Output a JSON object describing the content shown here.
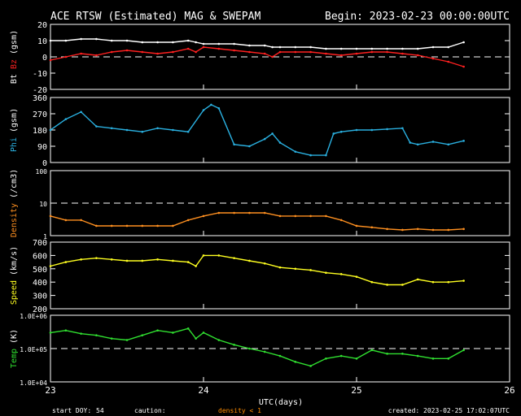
{
  "header": {
    "title": "ACE RTSW (Estimated) MAG & SWEPAM",
    "begin": "Begin: 2023-02-23 00:00:00UTC"
  },
  "colors": {
    "background": "#000000",
    "foreground": "#ffffff",
    "bt": "#ffffff",
    "bz": "#ff2020",
    "phi": "#2ab0e0",
    "density": "#ff9020",
    "speed": "#ffff20",
    "temp": "#30e030",
    "caution": "#ff8c00"
  },
  "footer": {
    "start_doy_label": "start DOY:",
    "start_doy_value": "54",
    "caution_label": "caution:",
    "caution_text": "density < 1",
    "created": "created: 2023-02-25 17:02:07UTC"
  },
  "chart_data": [
    {
      "type": "scatter",
      "ylabel_parts": [
        "Bt",
        "Bz",
        "(gsm)"
      ],
      "ylim": [
        -20,
        20
      ],
      "yticks": [
        "-20",
        "-10",
        "0",
        "10",
        "20"
      ],
      "ref_lines": [
        0
      ],
      "series": [
        {
          "name": "Bt",
          "x": [
            0,
            0.1,
            0.2,
            0.3,
            0.4,
            0.5,
            0.6,
            0.7,
            0.8,
            0.9,
            0.95,
            1.0,
            1.1,
            1.2,
            1.3,
            1.4,
            1.45,
            1.5,
            1.6,
            1.7,
            1.8,
            1.9,
            2.0,
            2.1,
            2.2,
            2.3,
            2.4,
            2.5,
            2.6,
            2.7
          ],
          "values": [
            10,
            10,
            11,
            11,
            10,
            10,
            9,
            9,
            9,
            10,
            9,
            8,
            8,
            8,
            7,
            7,
            6,
            6,
            6,
            6,
            5,
            5,
            5,
            5,
            5,
            5,
            5,
            6,
            6,
            9
          ]
        },
        {
          "name": "Bz",
          "x": [
            0,
            0.1,
            0.2,
            0.3,
            0.4,
            0.5,
            0.6,
            0.7,
            0.8,
            0.9,
            0.95,
            1.0,
            1.1,
            1.2,
            1.3,
            1.4,
            1.45,
            1.5,
            1.6,
            1.7,
            1.8,
            1.9,
            2.0,
            2.1,
            2.2,
            2.3,
            2.4,
            2.5,
            2.6,
            2.7
          ],
          "values": [
            -2,
            0,
            2,
            1,
            3,
            4,
            3,
            2,
            3,
            5,
            3,
            6,
            5,
            4,
            3,
            2,
            0,
            3,
            3,
            3,
            2,
            1,
            2,
            3,
            3,
            2,
            1,
            -1,
            -3,
            -6
          ]
        }
      ]
    },
    {
      "type": "scatter",
      "ylabel_parts": [
        "Phi",
        "(gsm)"
      ],
      "ylim": [
        0,
        360
      ],
      "yticks": [
        "0",
        "90",
        "180",
        "270",
        "360"
      ],
      "ref_lines": [],
      "series": [
        {
          "name": "Phi",
          "x": [
            0,
            0.1,
            0.2,
            0.3,
            0.4,
            0.5,
            0.6,
            0.7,
            0.8,
            0.9,
            1.0,
            1.05,
            1.1,
            1.2,
            1.3,
            1.4,
            1.45,
            1.5,
            1.6,
            1.7,
            1.8,
            1.85,
            1.9,
            2.0,
            2.1,
            2.2,
            2.3,
            2.35,
            2.4,
            2.5,
            2.6,
            2.7
          ],
          "values": [
            180,
            240,
            280,
            200,
            190,
            180,
            170,
            190,
            180,
            170,
            290,
            320,
            300,
            100,
            90,
            130,
            160,
            110,
            60,
            40,
            40,
            160,
            170,
            180,
            180,
            185,
            190,
            110,
            100,
            115,
            100,
            120
          ]
        }
      ]
    },
    {
      "type": "scatter",
      "ylabel_parts": [
        "Density",
        "(/cm3)"
      ],
      "yscale": "log",
      "ylim": [
        1,
        100
      ],
      "yticks": [
        "1",
        "10",
        "100"
      ],
      "ref_lines": [
        10
      ],
      "series": [
        {
          "name": "Density",
          "x": [
            0,
            0.1,
            0.2,
            0.3,
            0.4,
            0.5,
            0.6,
            0.7,
            0.8,
            0.9,
            1.0,
            1.1,
            1.2,
            1.3,
            1.4,
            1.5,
            1.6,
            1.7,
            1.8,
            1.9,
            2.0,
            2.1,
            2.2,
            2.3,
            2.4,
            2.5,
            2.6,
            2.7
          ],
          "values": [
            4,
            3,
            3,
            2,
            2,
            2,
            2,
            2,
            2,
            3,
            4,
            5,
            5,
            5,
            5,
            4,
            4,
            4,
            4,
            3,
            2,
            1.8,
            1.6,
            1.5,
            1.6,
            1.5,
            1.5,
            1.6
          ]
        }
      ]
    },
    {
      "type": "scatter",
      "ylabel_parts": [
        "Speed",
        "(km/s)"
      ],
      "ylim": [
        200,
        700
      ],
      "yticks": [
        "200",
        "300",
        "400",
        "500",
        "600",
        "700"
      ],
      "ref_lines": [],
      "series": [
        {
          "name": "Speed",
          "x": [
            0,
            0.1,
            0.2,
            0.3,
            0.4,
            0.5,
            0.6,
            0.7,
            0.8,
            0.9,
            0.95,
            1.0,
            1.1,
            1.2,
            1.3,
            1.4,
            1.5,
            1.6,
            1.7,
            1.8,
            1.9,
            2.0,
            2.1,
            2.2,
            2.3,
            2.4,
            2.5,
            2.6,
            2.7
          ],
          "values": [
            520,
            550,
            570,
            580,
            570,
            560,
            560,
            570,
            560,
            550,
            520,
            600,
            600,
            580,
            560,
            540,
            510,
            500,
            490,
            470,
            460,
            440,
            400,
            380,
            380,
            420,
            400,
            400,
            410
          ]
        }
      ]
    },
    {
      "type": "scatter",
      "ylabel_parts": [
        "Temp",
        "(K)"
      ],
      "yscale": "log",
      "ylim": [
        10000,
        1000000
      ],
      "yticks": [
        "1.0E+04",
        "1.0E+05",
        "1.0E+06"
      ],
      "ref_lines": [
        100000
      ],
      "series": [
        {
          "name": "Temp",
          "x": [
            0,
            0.1,
            0.2,
            0.3,
            0.4,
            0.5,
            0.6,
            0.7,
            0.8,
            0.9,
            0.95,
            1.0,
            1.1,
            1.2,
            1.3,
            1.4,
            1.5,
            1.6,
            1.7,
            1.8,
            1.9,
            2.0,
            2.1,
            2.2,
            2.3,
            2.4,
            2.5,
            2.6,
            2.7
          ],
          "values": [
            300000,
            350000,
            280000,
            250000,
            200000,
            180000,
            250000,
            350000,
            300000,
            400000,
            200000,
            300000,
            180000,
            130000,
            100000,
            80000,
            60000,
            40000,
            30000,
            50000,
            60000,
            50000,
            90000,
            70000,
            70000,
            60000,
            50000,
            50000,
            90000
          ]
        }
      ]
    }
  ],
  "xaxis": {
    "label": "UTC(days)",
    "ticks": [
      {
        "v": 0,
        "t": "23"
      },
      {
        "v": 1,
        "t": "24"
      },
      {
        "v": 2,
        "t": "25"
      },
      {
        "v": 3,
        "t": "26"
      }
    ]
  }
}
